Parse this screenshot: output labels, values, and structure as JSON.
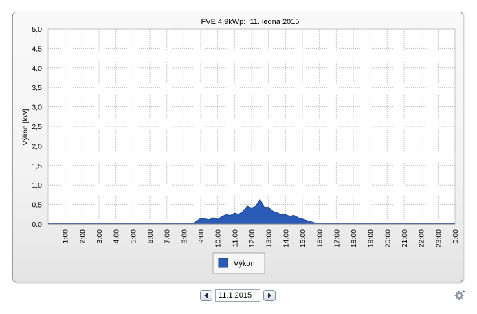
{
  "chart_data": {
    "type": "area",
    "title": "FVE 4,9kWp:  11. ledna 2015",
    "xlabel": "",
    "ylabel": "Výkon [kW]",
    "ylim": [
      0,
      5
    ],
    "y_ticks": [
      "0,0",
      "0,5",
      "1,0",
      "1,5",
      "2,0",
      "2,5",
      "3,0",
      "3,5",
      "4,0",
      "4,5",
      "5,0"
    ],
    "x_ticks": [
      "1:00",
      "2:00",
      "3:00",
      "4:00",
      "5:00",
      "6:00",
      "7:00",
      "8:00",
      "9:00",
      "10:00",
      "11:00",
      "12:00",
      "13:00",
      "14:00",
      "15:00",
      "16:00",
      "17:00",
      "18:00",
      "19:00",
      "20:00",
      "21:00",
      "22:00",
      "23:00",
      "0:00"
    ],
    "grid": true,
    "legend_position": "bottom-center",
    "series": [
      {
        "name": "Výkon",
        "color": "#2a5bb6",
        "x": [
          0.0,
          8.5,
          8.75,
          9.0,
          9.25,
          9.5,
          9.75,
          10.0,
          10.25,
          10.5,
          10.75,
          11.0,
          11.25,
          11.5,
          11.75,
          12.0,
          12.25,
          12.5,
          12.75,
          13.0,
          13.25,
          13.5,
          13.75,
          14.0,
          14.25,
          14.5,
          14.75,
          15.0,
          15.25,
          15.5,
          15.75,
          16.0,
          16.25,
          24.0
        ],
        "y": [
          0.0,
          0.0,
          0.08,
          0.14,
          0.13,
          0.11,
          0.16,
          0.12,
          0.19,
          0.24,
          0.22,
          0.28,
          0.25,
          0.33,
          0.46,
          0.41,
          0.46,
          0.63,
          0.43,
          0.43,
          0.33,
          0.29,
          0.24,
          0.24,
          0.2,
          0.22,
          0.16,
          0.13,
          0.09,
          0.06,
          0.03,
          0.01,
          0.0,
          0.0
        ]
      }
    ]
  },
  "controls": {
    "date_value": "11.1.2015",
    "prev_icon": "triangle-left-icon",
    "next_icon": "triangle-right-icon",
    "settings_icon": "gear-icon"
  }
}
